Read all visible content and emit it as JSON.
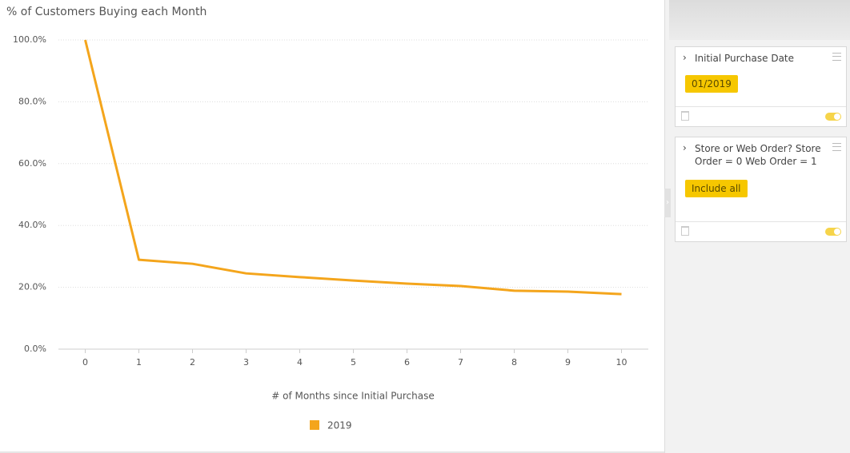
{
  "chart_data": {
    "type": "line",
    "title": "% of Customers Buying each Month",
    "x_label": "# of Months since Initial Purchase",
    "x": [
      0,
      1,
      2,
      3,
      4,
      5,
      6,
      7,
      8,
      9,
      10
    ],
    "series": [
      {
        "name": "2019",
        "color": "#f4a51c",
        "values": [
          100,
          28.9,
          27.6,
          24.5,
          23.3,
          22.2,
          21.2,
          20.4,
          18.9,
          18.6,
          17.8
        ]
      }
    ],
    "xlim": [
      -0.5,
      10.5
    ],
    "xticks": [
      0,
      1,
      2,
      3,
      4,
      5,
      6,
      7,
      8,
      9,
      10
    ],
    "ylim": [
      0,
      100
    ],
    "yticks": [
      {
        "value": 0,
        "label": "0.0%"
      },
      {
        "value": 20,
        "label": "20.0%"
      },
      {
        "value": 40,
        "label": "40.0%"
      },
      {
        "value": 60,
        "label": "60.0%"
      },
      {
        "value": 80,
        "label": "80.0%"
      },
      {
        "value": 100,
        "label": "100.0%"
      }
    ],
    "grid": true,
    "legend": "bottom"
  },
  "filters": [
    {
      "title": "Initial Purchase Date",
      "value": "01/2019"
    },
    {
      "title": "Store or Web Order? Store Order = 0 Web Order = 1",
      "value": "Include all"
    }
  ]
}
